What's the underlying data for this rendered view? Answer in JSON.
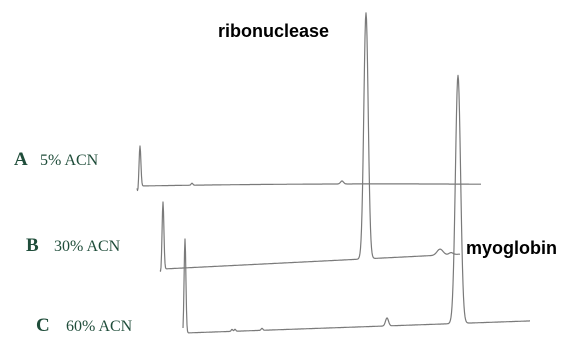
{
  "chart_data": {
    "type": "line",
    "title": "",
    "xlabel": "",
    "ylabel": "",
    "label_color": "#1f4d3a",
    "line_color": "#7a7a7a",
    "series": [
      {
        "letter": "A",
        "condition": "5% ACN"
      },
      {
        "letter": "B",
        "condition": "30% ACN"
      },
      {
        "letter": "C",
        "condition": "60% ACN"
      }
    ],
    "annotations": [
      {
        "text": "ribonuclease"
      },
      {
        "text": "myoglobin"
      }
    ]
  }
}
